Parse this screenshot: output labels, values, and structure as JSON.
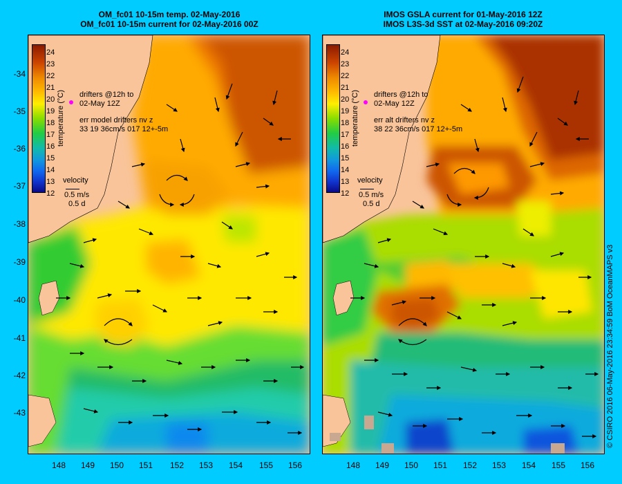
{
  "left_panel": {
    "title_line1": "OM_fc01 10-15m temp. 02-May-2016",
    "title_line2": "OM_fc01 10-15m current for 02-May-2016 00Z",
    "drifters_line1": "drifters @12h to",
    "drifters_line2": "02-May 12Z",
    "err_line1": "err model drifters nv z",
    "err_line2": "33 19 36cm/s 017 12+-5m",
    "velocity_label": "velocity",
    "velocity_speed": "0.5 m/s",
    "velocity_time": "0.5 d"
  },
  "right_panel": {
    "title_line1": "IMOS GSLA current for 01-May-2016 12Z",
    "title_line2": "IMOS L3S-3d SST at 02-May-2016 09:20Z",
    "drifters_line1": "drifters @12h to",
    "drifters_line2": "02-May 12Z",
    "err_line1": "err alt drifters nv z",
    "err_line2": "38 22 36cm/s 017 12+-5m",
    "velocity_label": "velocity",
    "velocity_speed": "0.5 m/s",
    "velocity_time": "0.5 d"
  },
  "colorbar": {
    "title": "temperature (°C)",
    "ticks": [
      "24",
      "23",
      "22",
      "21",
      "20",
      "19",
      "18",
      "17",
      "16",
      "15",
      "14",
      "13",
      "12"
    ]
  },
  "y_axis": [
    "-34",
    "-35",
    "-36",
    "-37",
    "-38",
    "-39",
    "-40",
    "-41",
    "-42",
    "-43"
  ],
  "x_axis_left": [
    "148",
    "149",
    "150",
    "151",
    "152",
    "153",
    "154",
    "155",
    "156"
  ],
  "x_axis_right": [
    "148",
    "149",
    "150",
    "151",
    "152",
    "153",
    "154",
    "155",
    "156"
  ],
  "copyright": "© CSIRO 2016   06-May-2016 23:34:59 BoM OceanMAPS v3",
  "colors": {
    "background": "#00ccff",
    "land": "#f9c49a",
    "drifter": "#ff00ff"
  }
}
